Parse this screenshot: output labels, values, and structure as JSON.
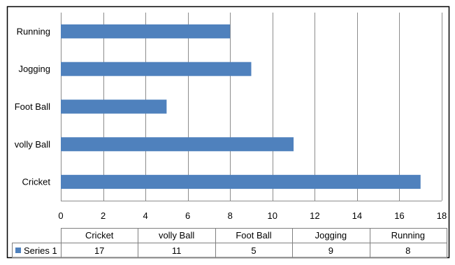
{
  "chart_data": {
    "type": "bar",
    "orientation": "horizontal",
    "categories": [
      "Cricket",
      "volly Ball",
      "Foot Ball",
      "Jogging",
      "Running"
    ],
    "series": [
      {
        "name": "Series 1",
        "values": [
          17,
          11,
          5,
          9,
          8
        ]
      }
    ],
    "xlim": [
      0,
      18
    ],
    "x_ticks": [
      0,
      2,
      4,
      6,
      8,
      10,
      12,
      14,
      16,
      18
    ],
    "grid": true,
    "data_table": true,
    "colors": {
      "bar": "#4f81bd",
      "grid": "#8c8c8c",
      "border": "#000000",
      "table_border": "#7f7f7f"
    }
  }
}
